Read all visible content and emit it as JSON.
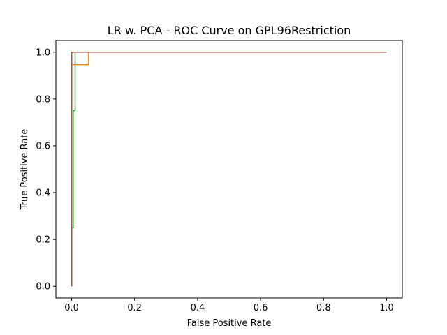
{
  "chart_data": {
    "type": "line",
    "title": "LR w. PCA - ROC Curve on GPL96Restriction",
    "xlabel": "False Positive Rate",
    "ylabel": "True  Positive Rate",
    "xlim": [
      -0.05,
      1.05
    ],
    "ylim": [
      -0.05,
      1.05
    ],
    "xticks": [
      0.0,
      0.2,
      0.4,
      0.6,
      0.8,
      1.0
    ],
    "yticks": [
      0.0,
      0.2,
      0.4,
      0.6,
      0.8,
      1.0
    ],
    "xtick_labels": [
      "0.0",
      "0.2",
      "0.4",
      "0.6",
      "0.8",
      "1.0"
    ],
    "ytick_labels": [
      "0.0",
      "0.2",
      "0.4",
      "0.6",
      "0.8",
      "1.0"
    ],
    "grid": false,
    "series": [
      {
        "color": "#1f77b4",
        "x": [
          0.0,
          0.0,
          0.0,
          1.0
        ],
        "y": [
          0.0,
          0.0,
          1.0,
          1.0
        ]
      },
      {
        "color": "#ff7f0e",
        "x": [
          0.0,
          0.0,
          0.0,
          0.054,
          0.054,
          1.0
        ],
        "y": [
          0.0,
          0.0,
          0.947,
          0.947,
          1.0,
          1.0
        ]
      },
      {
        "color": "#2ca02c",
        "x": [
          0.0,
          0.0,
          0.0,
          0.005,
          0.005,
          0.011,
          0.011,
          1.0
        ],
        "y": [
          0.0,
          0.0,
          0.25,
          0.25,
          0.75,
          0.75,
          1.0,
          1.0
        ]
      },
      {
        "color": "#d62728",
        "x": [
          0.0,
          0.0,
          0.0,
          1.0
        ],
        "y": [
          0.0,
          0.0,
          1.0,
          1.0
        ]
      },
      {
        "color": "#9467bd",
        "x": [
          0.0,
          0.0,
          0.0,
          1.0
        ],
        "y": [
          0.0,
          0.0,
          1.0,
          1.0
        ]
      },
      {
        "color": "#8c564b",
        "x": [
          0.0,
          0.0,
          0.0,
          1.0
        ],
        "y": [
          0.0,
          0.0,
          1.0,
          1.0
        ]
      }
    ]
  }
}
